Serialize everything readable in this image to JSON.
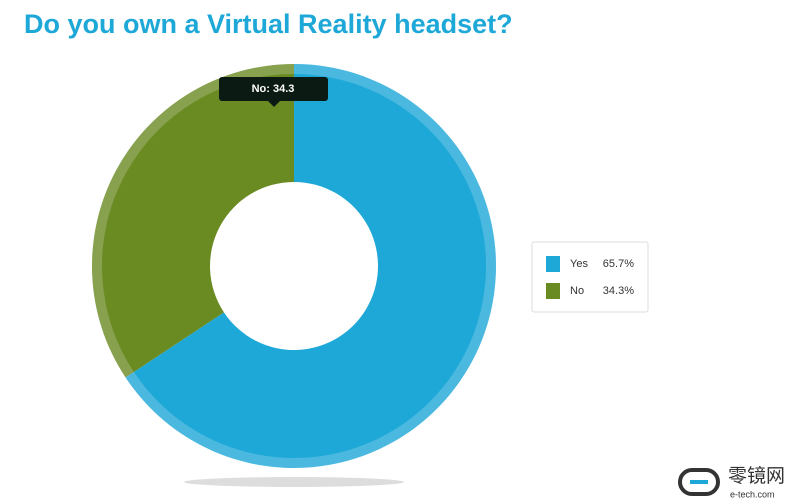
{
  "chart_data": {
    "type": "donut",
    "title": "Do you own a Virtual Reality headset?",
    "categories": [
      "Yes",
      "No"
    ],
    "values": [
      65.7,
      34.3
    ],
    "value_labels": [
      "65.7%",
      "34.3%"
    ],
    "colors": [
      "#1ea8d8",
      "#6a8a22"
    ],
    "tooltip": "No: 34.3",
    "legend": "right"
  },
  "watermark": {
    "name": "零镜网",
    "site": "e-tech.com"
  }
}
